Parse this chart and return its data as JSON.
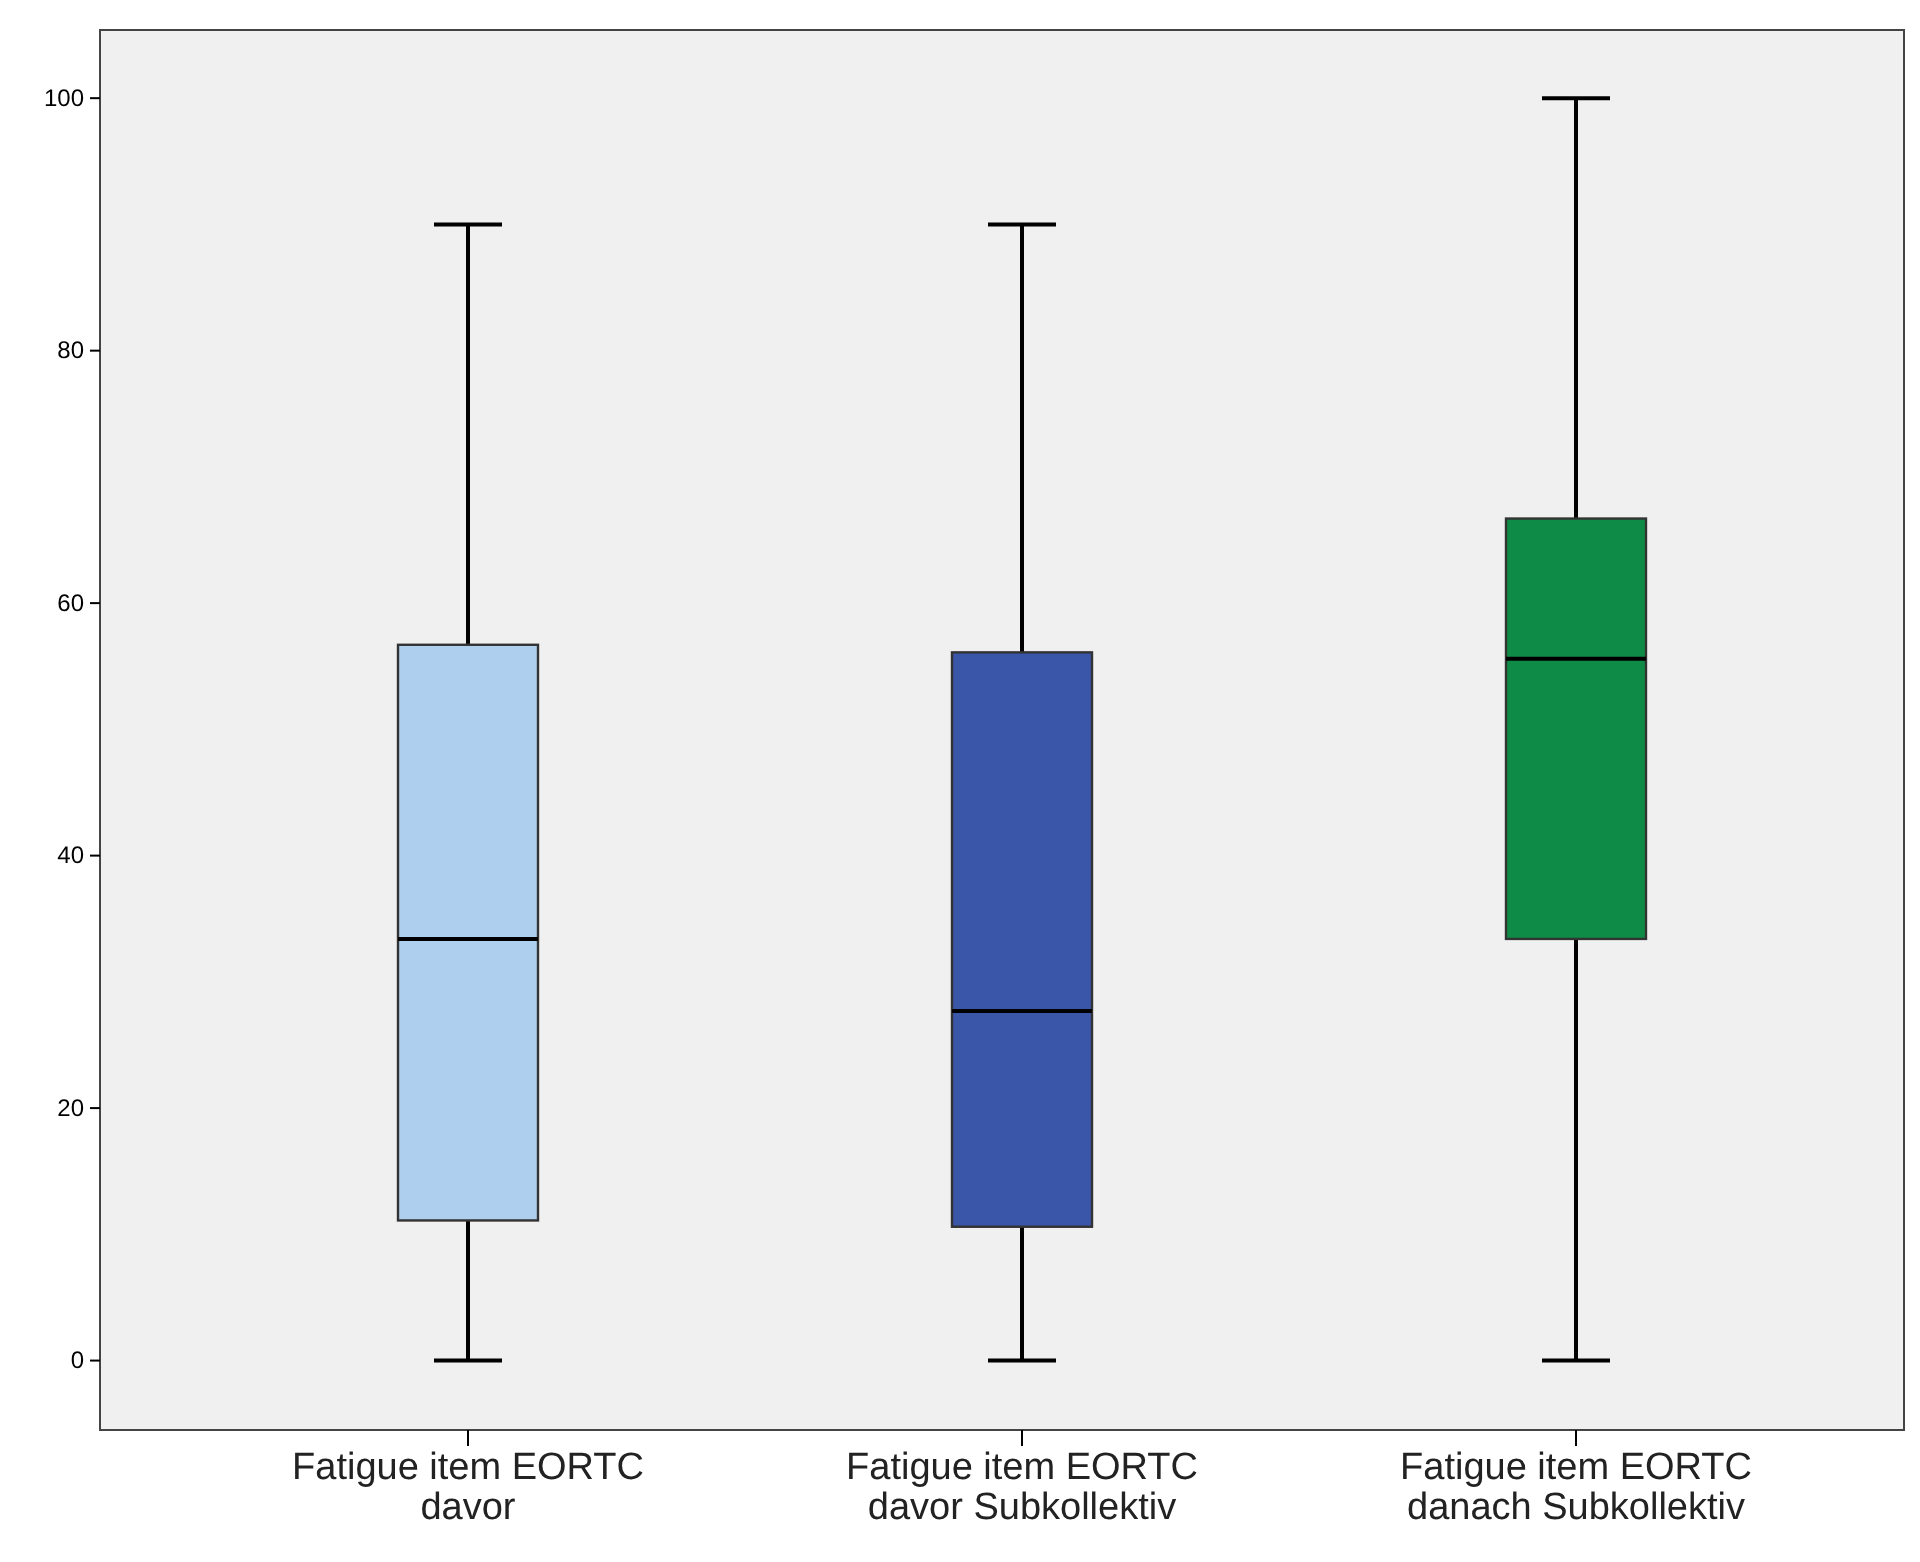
{
  "chart_data": {
    "type": "box",
    "categories": [
      "Fatigue item EORTC davor",
      "Fatigue item EORTC davor Subkollektiv",
      "Fatigue item EORTC danach Subkollektiv"
    ],
    "colors": [
      "#aed0ee",
      "#3a56a8",
      "#0e8c47"
    ],
    "boxes": [
      {
        "low": 0,
        "q1": 11.1,
        "median": 33.4,
        "q3": 56.7,
        "high": 90
      },
      {
        "low": 0,
        "q1": 10.6,
        "median": 27.7,
        "q3": 56.1,
        "high": 90
      },
      {
        "low": 0,
        "q1": 33.4,
        "median": 55.6,
        "q3": 66.7,
        "high": 100
      }
    ],
    "ylim": [
      -5.5,
      105.4
    ],
    "yticks": [
      0,
      20,
      40,
      60,
      80,
      100
    ]
  }
}
